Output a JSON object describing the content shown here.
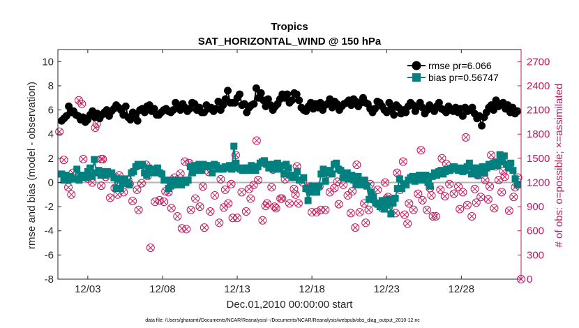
{
  "chart_data": {
    "type": "line",
    "title": "Tropics",
    "subtitle": "SAT_HORIZONTAL_WIND @ 150 hPa",
    "xlabel": "Dec.01,2010 00:00:00 start",
    "ylabel_left": "rmse and bias (model - observation)",
    "ylabel_right": "# of obs: o=possible; ×=assimilated",
    "ylim_left": [
      -8,
      11
    ],
    "ylim_right": [
      0,
      2850
    ],
    "yticks_left": [
      -8,
      -6,
      -4,
      -2,
      0,
      2,
      4,
      6,
      8,
      10
    ],
    "yticks_right": [
      0,
      300,
      600,
      900,
      1200,
      1500,
      1800,
      2100,
      2400,
      2700
    ],
    "xlim_days": [
      1.0,
      32.0
    ],
    "xtick_days": [
      3,
      8,
      13,
      18,
      23,
      28
    ],
    "xtick_labels": [
      "12/03",
      "12/08",
      "12/13",
      "12/18",
      "12/23",
      "12/28"
    ],
    "reference_line_y": 0,
    "legend_position": "top-right",
    "footnote": "data file: /Users/gharamti/Documents/NCAR/Reanalysis/~/Documents/NCAR/Reanalysis/webpub/obs_diag_output_2010-12.nc",
    "colors": {
      "rmse": "#000000",
      "bias": "#00807f",
      "obs": "#c2185b",
      "zero_line": "#b3b3b3"
    },
    "series": [
      {
        "name": "rmse pr=6.066",
        "axis": "left",
        "values": [
          5.1,
          5.3,
          5.5,
          6.3,
          5.8,
          5.9,
          5.6,
          5.5,
          5.2,
          5.4,
          5.0,
          5.2,
          5.6,
          5.9,
          5.4,
          5.7,
          5.3,
          5.6,
          5.8,
          6.0,
          5.5,
          5.9,
          6.1,
          6.4,
          6.2,
          6.0,
          5.6,
          6.3,
          5.4,
          5.2,
          5.8,
          5.6,
          5.1,
          6.0,
          6.1,
          5.8,
          6.3,
          6.4,
          5.9,
          6.1,
          5.6,
          5.6,
          5.8,
          6.0,
          6.1,
          5.9,
          5.8,
          6.0,
          6.6,
          6.3,
          6.0,
          6.5,
          6.2,
          5.9,
          6.1,
          6.6,
          6.5,
          6.0,
          6.2,
          5.8,
          5.8,
          6.4,
          6.1,
          6.2,
          5.9,
          6.1,
          6.7,
          6.0,
          6.4,
          6.9,
          7.6,
          6.6,
          6.6,
          6.6,
          7.0,
          7.3,
          6.4,
          6.5,
          5.8,
          6.2,
          6.4,
          6.5,
          7.8,
          7.0,
          7.4,
          6.8,
          6.3,
          6.9,
          6.4,
          6.0,
          6.3,
          6.5,
          6.9,
          7.3,
          7.0,
          7.3,
          6.6,
          6.8,
          7.4,
          7.3,
          6.8,
          6.2,
          6.0,
          5.9,
          6.3,
          6.6,
          6.1,
          6.5,
          6.2,
          6.6,
          6.0,
          6.4,
          6.5,
          6.9,
          6.2,
          6.7,
          6.5,
          6.0,
          6.3,
          6.5,
          6.6,
          6.8,
          6.4,
          6.9,
          6.7,
          6.3,
          6.6,
          7.0,
          6.6,
          6.5,
          6.1,
          5.8,
          6.1,
          6.7,
          6.6,
          6.3,
          6.0,
          5.8,
          6.6,
          6.1,
          5.6,
          6.4,
          6.2,
          5.7,
          6.0,
          5.8,
          6.3,
          6.6,
          6.4,
          5.9,
          6.3,
          6.6,
          6.2,
          5.7,
          6.0,
          6.4,
          6.1,
          5.9,
          6.3,
          6.6,
          6.1,
          6.0,
          5.8,
          6.3,
          6.0,
          5.9,
          6.2,
          5.8,
          6.1,
          5.5,
          6.2,
          5.9,
          6.0,
          6.2,
          5.7,
          5.3,
          5.5,
          4.7,
          5.4,
          5.8,
          6.2,
          6.4,
          6.0,
          6.8,
          6.3,
          6.5,
          6.6,
          6.1,
          6.4,
          5.8,
          6.2,
          5.7,
          5.9
        ],
        "marker": "circle"
      },
      {
        "name": "bias pr=0.56747",
        "axis": "left",
        "values": [
          0.7,
          0.2,
          0.6,
          0.2,
          0.5,
          0.3,
          0.3,
          1.1,
          0.2,
          0.6,
          0.6,
          0.4,
          0.9,
          1.2,
          0.5,
          1.9,
          0.8,
          1.0,
          0.6,
          0.9,
          0.6,
          0.9,
          0.7,
          0.8,
          0.4,
          -0.5,
          0.3,
          -0.5,
          -0.1,
          0.3,
          0.0,
          -0.2,
          0.8,
          0.9,
          1.3,
          1.5,
          1.4,
          1.5,
          0.8,
          0.6,
          1.2,
          1.0,
          0.8,
          1.1,
          1.2,
          0.8,
          0.7,
          0.2,
          0.2,
          -0.5,
          -0.3,
          0.2,
          0.0,
          -0.2,
          0.2,
          -0.2,
          0.2,
          0.0,
          0.2,
          1.3,
          0.8,
          1.4,
          1.0,
          1.5,
          1.0,
          1.5,
          1.4,
          1.3,
          1.4,
          0.8,
          1.5,
          1.4,
          1.1,
          1.2,
          1.1,
          1.3,
          1.2,
          1.4,
          1.1,
          3.0,
          1.6,
          1.2,
          1.1,
          1.0,
          1.2,
          1.2,
          1.0,
          1.4,
          1.1,
          1.0,
          1.3,
          1.6,
          1.7,
          1.8,
          1.5,
          1.2,
          1.5,
          1.1,
          1.4,
          1.6,
          1.1,
          1.4,
          0.7,
          1.5,
          1.2,
          0.6,
          0.4,
          0.6,
          0.9,
          0.2,
          0.2,
          0.4,
          -0.5,
          -1.5,
          -0.8,
          -0.3,
          -0.8,
          -0.8,
          -0.3,
          0.7,
          1.1,
          0.1,
          0.8,
          1.0,
          0.7,
          1.5,
          1.6,
          1.1,
          1.0,
          0.4,
          0.5,
          0.8,
          0.3,
          0.6,
          0.2,
          -0.2,
          0.5,
          0.0,
          -0.2,
          0.2,
          -0.3,
          -1.4,
          -0.8,
          -1.2,
          -1.7,
          -1.8,
          -2.0,
          -1.5,
          -2.2,
          -1.9,
          -1.4,
          -2.6,
          -1.7,
          -1.3,
          -0.5,
          0.3,
          -0.5,
          -0.1,
          -0.2,
          0.2,
          0.4,
          0.5,
          0.1,
          0.3,
          0.6,
          0.2,
          0.5,
          0.6,
          0.0,
          -0.3,
          0.5,
          0.8,
          0.6,
          0.9,
          1.0,
          0.7,
          0.9,
          1.1,
          1.0,
          1.2,
          1.3,
          1.1,
          1.0,
          1.2,
          0.9,
          1.0,
          1.3,
          1.6,
          0.7,
          1.2,
          1.2,
          0.6,
          1.0,
          1.3,
          0.8,
          1.2,
          1.5,
          1.3,
          1.6,
          1.7,
          1.4,
          2.3,
          1.7,
          2.2,
          1.5,
          1.2,
          1.6,
          1.0,
          0.3,
          -0.2
        ],
        "marker": "square"
      },
      {
        "name": "obs",
        "axis": "right",
        "marker": "circle-x",
        "points": [
          [
            1.1,
            1830
          ],
          [
            1.4,
            1480
          ],
          [
            1.7,
            1140
          ],
          [
            2.0,
            1320
          ],
          [
            2.4,
            2220
          ],
          [
            2.7,
            1490
          ],
          [
            3.0,
            1250
          ],
          [
            3.3,
            1200
          ],
          [
            3.6,
            1930
          ],
          [
            3.9,
            1160
          ],
          [
            4.2,
            1270
          ],
          [
            4.5,
            1010
          ],
          [
            4.8,
            1130
          ],
          [
            5.1,
            1290
          ],
          [
            5.4,
            1080
          ],
          [
            5.7,
            1230
          ],
          [
            6.0,
            970
          ],
          [
            6.3,
            1110
          ],
          [
            6.6,
            1190
          ],
          [
            7.0,
            1280
          ],
          [
            7.2,
            390
          ],
          [
            7.5,
            960
          ],
          [
            7.8,
            980
          ],
          [
            8.1,
            960
          ],
          [
            8.4,
            1080
          ],
          [
            8.6,
            880
          ],
          [
            9.0,
            780
          ],
          [
            9.3,
            630
          ],
          [
            9.6,
            620
          ],
          [
            9.9,
            860
          ],
          [
            10.2,
            1000
          ],
          [
            10.5,
            900
          ],
          [
            10.8,
            640
          ],
          [
            11.2,
            840
          ],
          [
            11.5,
            1040
          ],
          [
            11.8,
            700
          ],
          [
            12.1,
            890
          ],
          [
            12.4,
            940
          ],
          [
            12.7,
            760
          ],
          [
            13.0,
            760
          ],
          [
            13.3,
            1080
          ],
          [
            13.6,
            840
          ],
          [
            13.9,
            1000
          ],
          [
            14.1,
            1170
          ],
          [
            14.4,
            1230
          ],
          [
            14.7,
            730
          ],
          [
            15.0,
            940
          ],
          [
            15.3,
            1140
          ],
          [
            15.6,
            880
          ],
          [
            15.9,
            1000
          ],
          [
            16.2,
            1240
          ],
          [
            16.5,
            940
          ],
          [
            16.8,
            1120
          ],
          [
            17.1,
            940
          ],
          [
            17.4,
            1200
          ],
          [
            17.7,
            1120
          ],
          [
            18.0,
            830
          ],
          [
            18.3,
            830
          ],
          [
            18.6,
            860
          ],
          [
            18.9,
            860
          ],
          [
            19.2,
            1080
          ],
          [
            19.5,
            1130
          ],
          [
            19.8,
            930
          ],
          [
            20.1,
            1170
          ],
          [
            20.4,
            1040
          ],
          [
            20.6,
            820
          ],
          [
            20.9,
            640
          ],
          [
            21.2,
            830
          ],
          [
            21.5,
            940
          ],
          [
            21.8,
            860
          ],
          [
            22.1,
            990
          ],
          [
            22.4,
            1110
          ],
          [
            22.7,
            880
          ],
          [
            23.0,
            1000
          ],
          [
            23.3,
            940
          ],
          [
            23.6,
            820
          ],
          [
            23.9,
            1110
          ],
          [
            24.2,
            800
          ],
          [
            24.5,
            940
          ],
          [
            24.8,
            860
          ],
          [
            25.1,
            1060
          ],
          [
            25.4,
            980
          ],
          [
            25.7,
            860
          ],
          [
            26.0,
            1040
          ],
          [
            26.3,
            780
          ],
          [
            26.6,
            1110
          ],
          [
            26.9,
            1030
          ],
          [
            27.2,
            1180
          ],
          [
            27.5,
            1060
          ],
          [
            27.8,
            1150
          ],
          [
            28.1,
            1080
          ],
          [
            28.4,
            920
          ],
          [
            28.7,
            780
          ],
          [
            29.0,
            950
          ],
          [
            29.3,
            1020
          ],
          [
            29.6,
            1230
          ],
          [
            29.9,
            1150
          ],
          [
            30.2,
            880
          ],
          [
            30.5,
            1230
          ],
          [
            30.9,
            1270
          ],
          [
            31.2,
            850
          ],
          [
            31.5,
            1020
          ],
          [
            31.8,
            1260
          ],
          [
            32.0,
            0
          ],
          [
            2.6,
            2175
          ],
          [
            3.5,
            1880
          ],
          [
            9.8,
            1440
          ],
          [
            11.1,
            1330
          ],
          [
            12.9,
            1540
          ],
          [
            14.3,
            1720
          ],
          [
            17.0,
            1400
          ],
          [
            19.1,
            1310
          ],
          [
            21.0,
            1420
          ],
          [
            22.5,
            2165
          ],
          [
            24.1,
            1460
          ],
          [
            25.3,
            1600
          ],
          [
            26.7,
            1500
          ],
          [
            28.3,
            1760
          ],
          [
            29.1,
            1290
          ],
          [
            30.0,
            1540
          ],
          [
            30.8,
            1340
          ],
          [
            31.6,
            1140
          ],
          [
            1.9,
            1050
          ],
          [
            4.0,
            1490
          ],
          [
            5.8,
            1180
          ],
          [
            6.9,
            1420
          ],
          [
            8.8,
            1260
          ],
          [
            10.7,
            1150
          ],
          [
            12.6,
            1180
          ],
          [
            15.4,
            1360
          ],
          [
            17.9,
            1150
          ],
          [
            20.3,
            1260
          ],
          [
            23.7,
            1320
          ],
          [
            27.0,
            1430
          ],
          [
            15.5,
            900
          ],
          [
            16.0,
            1000
          ],
          [
            18.5,
            1150
          ],
          [
            21.6,
            700
          ],
          [
            22.9,
            1200
          ],
          [
            24.4,
            690
          ],
          [
            26.1,
            780
          ],
          [
            27.9,
            870
          ],
          [
            30.7,
            1080
          ],
          [
            13.8,
            1120
          ],
          [
            3.9,
            1490
          ],
          [
            5.0,
            1050
          ],
          [
            6.4,
            860
          ],
          [
            8.2,
            1090
          ],
          [
            9.2,
            1310
          ],
          [
            9.5,
            1460
          ],
          [
            11.9,
            1240
          ],
          [
            12.2,
            1110
          ],
          [
            14.9,
            910
          ],
          [
            16.9,
            1050
          ],
          [
            19.7,
            1210
          ],
          [
            20.7,
            1090
          ],
          [
            21.9,
            1180
          ],
          [
            23.1,
            1020
          ],
          [
            25.9,
            1130
          ],
          [
            28.9,
            1120
          ],
          [
            29.8,
            990
          ],
          [
            30.3,
            1400
          ]
        ]
      }
    ]
  }
}
